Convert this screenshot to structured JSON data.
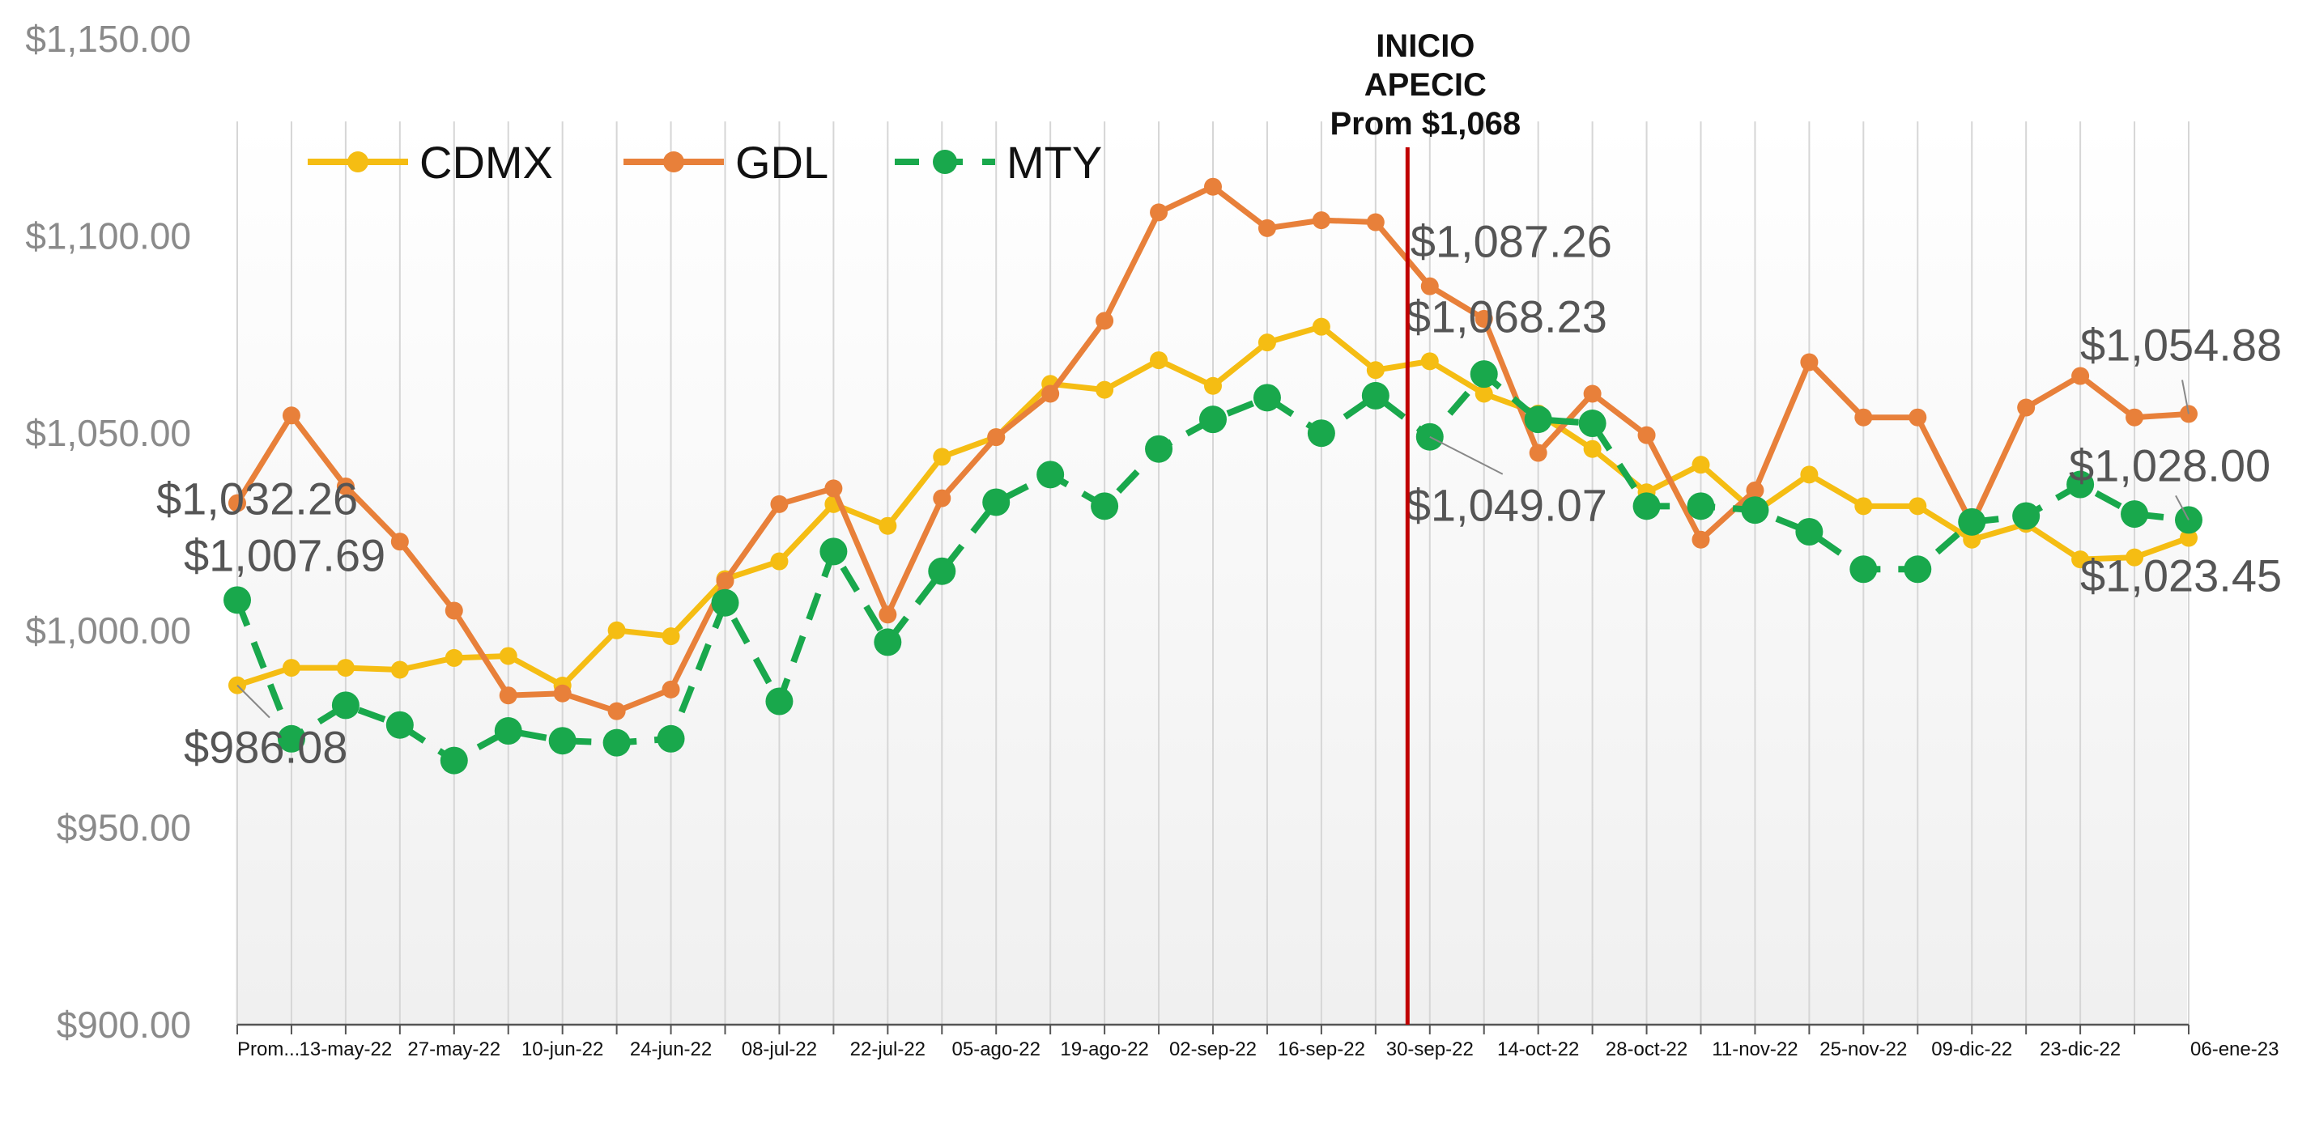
{
  "chart_data": {
    "type": "line",
    "categories": [
      "Prom...",
      "",
      "13-may-22",
      "",
      "27-may-22",
      "",
      "10-jun-22",
      "",
      "24-jun-22",
      "",
      "08-jul-22",
      "",
      "22-jul-22",
      "",
      "05-ago-22",
      "",
      "19-ago-22",
      "",
      "02-sep-22",
      "",
      "16-sep-22",
      "",
      "30-sep-22",
      "",
      "14-oct-22",
      "",
      "28-oct-22",
      "",
      "11-nov-22",
      "",
      "25-nov-22",
      "",
      "09-dic-22",
      "",
      "23-dic-22",
      "",
      "06-ene-23"
    ],
    "series": [
      {
        "name": "CDMX",
        "color": "#F5BD13",
        "dashed": false,
        "values": [
          986.08,
          990.5,
          990.5,
          990,
          993,
          993.5,
          986,
          1000,
          998.5,
          1013,
          1017.5,
          1032,
          1026.5,
          1044,
          1049,
          1062.5,
          1061,
          1068.5,
          1062,
          1073,
          1077,
          1066,
          1068.23,
          1060,
          1055,
          1046,
          1035,
          1042,
          1030,
          1039.5,
          1031.5,
          1031.5,
          1023,
          1027,
          1018,
          1018.5,
          1023.45
        ]
      },
      {
        "name": "GDL",
        "color": "#E8803A",
        "dashed": false,
        "values": [
          1032.26,
          1054.5,
          1036.5,
          1022.5,
          1005,
          983.5,
          984,
          979.5,
          985,
          1012.5,
          1032,
          1036,
          1004,
          1033.5,
          1049,
          1060,
          1078.5,
          1106,
          1112.5,
          1102,
          1104,
          1103.5,
          1087.26,
          1079,
          1045,
          1060,
          1049.5,
          1023,
          1035.5,
          1068,
          1054,
          1054,
          1027,
          1056.5,
          1064.5,
          1054,
          1054.88
        ]
      },
      {
        "name": "MTY",
        "color": "#19A84C",
        "dashed": true,
        "values": [
          1007.69,
          972.5,
          981,
          976,
          967,
          974.5,
          972,
          971.5,
          972.5,
          1007,
          982,
          1020,
          997,
          1015,
          1032.5,
          1039.5,
          1031.5,
          1046,
          1053.5,
          1059,
          1050,
          1059.5,
          1049.07,
          1065,
          1053.5,
          1052.5,
          1031.5,
          1031.5,
          1030.5,
          1025,
          1015.5,
          1015.5,
          1027.5,
          1029,
          1037,
          1029.5,
          1028.0
        ]
      }
    ],
    "ylim": [
      900,
      1150
    ],
    "y_ticks": [
      "$1,150.00",
      "$1,100.00",
      "$1,050.00",
      "$1,000.00",
      "$950.00",
      "$900.00"
    ],
    "y_tick_values": [
      1150,
      1100,
      1050,
      1000,
      950,
      900
    ],
    "grid": "vertical",
    "legend_position": "top-left",
    "callouts": [
      {
        "text": "$1,032.26",
        "series": "GDL",
        "index": 0
      },
      {
        "text": "$1,007.69",
        "series": "MTY",
        "index": 0
      },
      {
        "text": "$986.08",
        "series": "CDMX",
        "index": 0
      },
      {
        "text": "$1,087.26",
        "series": "GDL",
        "index": 22
      },
      {
        "text": "$1,068.23",
        "series": "CDMX",
        "index": 22
      },
      {
        "text": "$1,049.07",
        "series": "MTY",
        "index": 22
      },
      {
        "text": "$1,054.88",
        "series": "GDL",
        "index": 36
      },
      {
        "text": "$1,028.00",
        "series": "MTY",
        "index": 36
      },
      {
        "text": "$1,023.45",
        "series": "CDMX",
        "index": 36
      }
    ],
    "annotation": {
      "lines": [
        "INICIO",
        "APECIC",
        "Prom $1,068"
      ],
      "between_indices": [
        21,
        22
      ],
      "line_color": "#C00000"
    }
  }
}
